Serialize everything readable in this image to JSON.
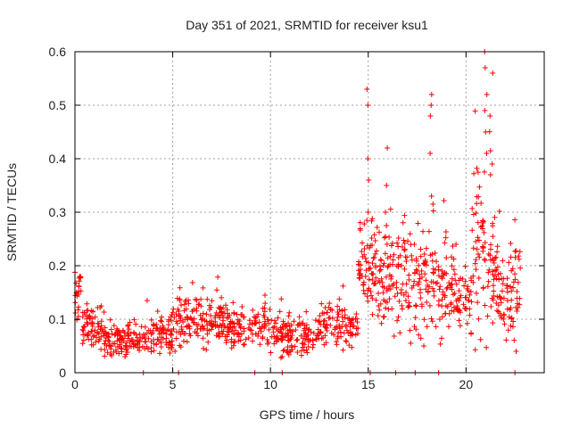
{
  "chart_data": {
    "type": "scatter",
    "title": "Day 351 of 2021, SRMTID for receiver ksu1",
    "xlabel": "GPS time / hours",
    "ylabel": "SRMTID / TECUs",
    "xlim": [
      0,
      24
    ],
    "ylim": [
      0,
      0.6
    ],
    "xticks": [
      0,
      5,
      10,
      15,
      20
    ],
    "xtick_labels": [
      "0",
      "5",
      "10",
      "15",
      "20"
    ],
    "yticks": [
      0,
      0.1,
      0.2,
      0.3,
      0.4,
      0.5,
      0.6
    ],
    "ytick_labels": [
      "0",
      "0.1",
      "0.2",
      "0.3",
      "0.4",
      "0.5",
      "0.6"
    ],
    "grid": true,
    "marker": "+",
    "color": "#ff0000",
    "segments": [
      {
        "t0": 0.0,
        "t1": 0.35,
        "base": 0.14,
        "spread": 0.035,
        "count": 22
      },
      {
        "t0": 0.35,
        "t1": 1.5,
        "base": 0.085,
        "spread": 0.025,
        "count": 70
      },
      {
        "t0": 1.5,
        "t1": 3.5,
        "base": 0.06,
        "spread": 0.022,
        "count": 115
      },
      {
        "t0": 3.5,
        "t1": 5.0,
        "base": 0.07,
        "spread": 0.025,
        "count": 85
      },
      {
        "t0": 5.0,
        "t1": 7.5,
        "base": 0.1,
        "spread": 0.035,
        "count": 140
      },
      {
        "t0": 7.5,
        "t1": 10.0,
        "base": 0.085,
        "spread": 0.028,
        "count": 130
      },
      {
        "t0": 10.0,
        "t1": 12.5,
        "base": 0.07,
        "spread": 0.025,
        "count": 130
      },
      {
        "t0": 12.5,
        "t1": 14.5,
        "base": 0.09,
        "spread": 0.03,
        "count": 100
      },
      {
        "t0": 14.5,
        "t1": 15.0,
        "base": 0.2,
        "spread": 0.07,
        "count": 35
      },
      {
        "t0": 15.0,
        "t1": 17.0,
        "base": 0.18,
        "spread": 0.07,
        "count": 130
      },
      {
        "t0": 17.0,
        "t1": 19.5,
        "base": 0.16,
        "spread": 0.07,
        "count": 150
      },
      {
        "t0": 19.5,
        "t1": 20.3,
        "base": 0.13,
        "spread": 0.04,
        "count": 45
      },
      {
        "t0": 20.3,
        "t1": 21.5,
        "base": 0.22,
        "spread": 0.1,
        "count": 85
      },
      {
        "t0": 21.5,
        "t1": 22.8,
        "base": 0.15,
        "spread": 0.06,
        "count": 80
      }
    ],
    "spikes": [
      {
        "t": 15.0,
        "values": [
          0.53,
          0.5,
          0.4,
          0.36,
          0.3
        ]
      },
      {
        "t": 15.9,
        "values": [
          0.42,
          0.35,
          0.3
        ]
      },
      {
        "t": 18.2,
        "values": [
          0.52,
          0.5,
          0.48,
          0.41,
          0.33
        ]
      },
      {
        "t": 21.0,
        "values": [
          0.6,
          0.57,
          0.52,
          0.49,
          0.45,
          0.41
        ]
      },
      {
        "t": 21.3,
        "values": [
          0.56,
          0.48,
          0.39
        ]
      }
    ],
    "zero_points": [
      3.5,
      5.3,
      9.2,
      10.6,
      15.1,
      16.4,
      17.4,
      18.6,
      22.5
    ]
  }
}
